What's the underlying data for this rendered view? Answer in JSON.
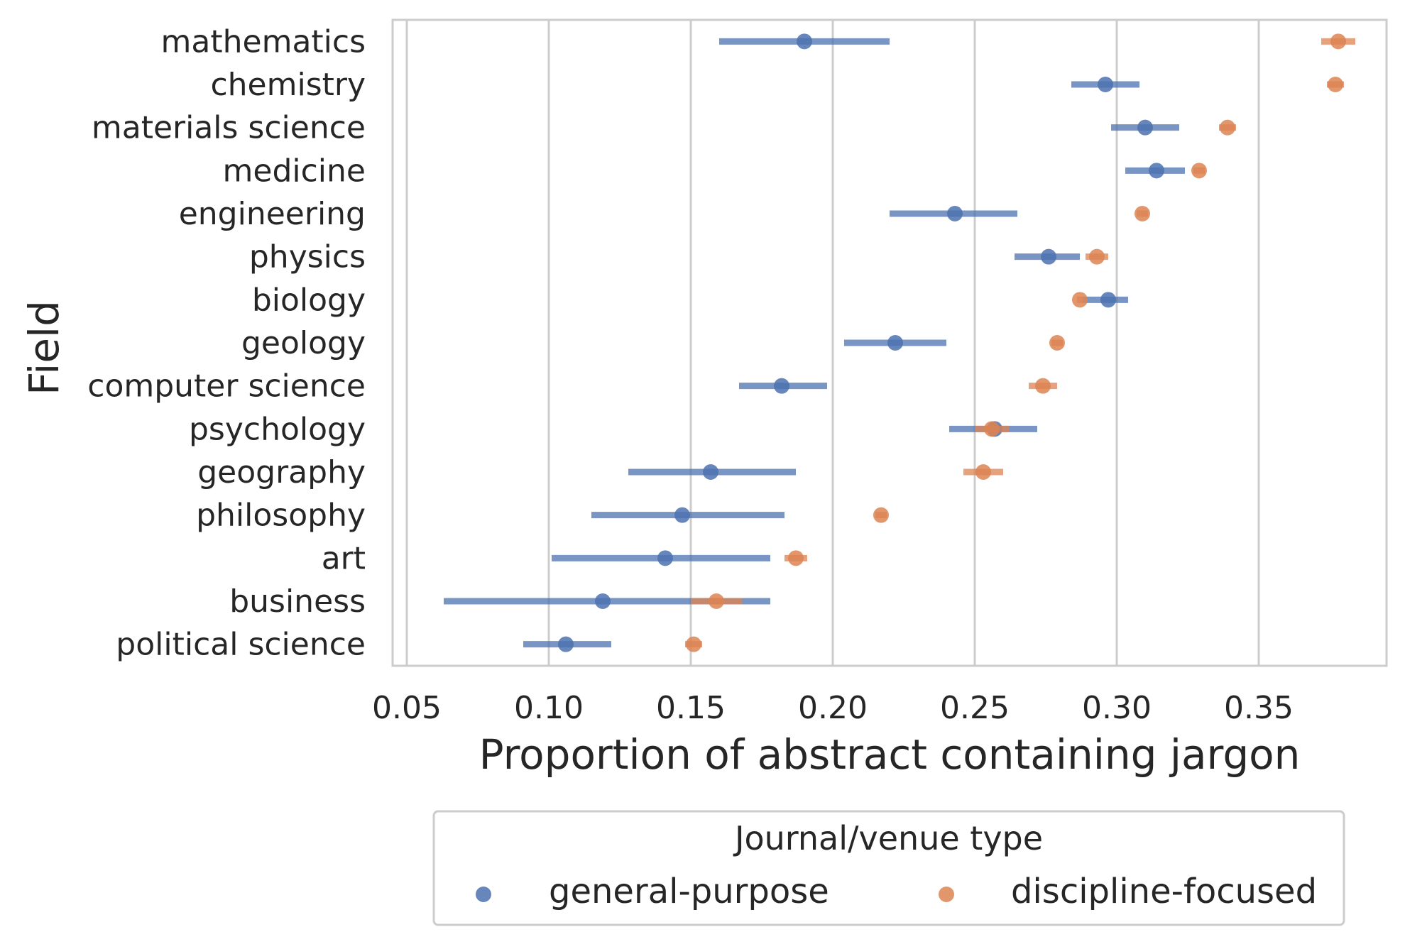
{
  "chart_data": {
    "type": "scatter",
    "orientation": "horizontal-pointplot-with-errorbars",
    "xlabel": "Proportion of abstract containing jargon",
    "ylabel": "Field",
    "xlim": [
      0.045,
      0.395
    ],
    "xticks": [
      "0.05",
      "0.10",
      "0.15",
      "0.20",
      "0.25",
      "0.30",
      "0.35"
    ],
    "grid": "vertical",
    "legend": {
      "title": "Journal/venue type",
      "placement": "below",
      "entries": [
        "general-purpose",
        "discipline-focused"
      ]
    },
    "categories": [
      "mathematics",
      "chemistry",
      "materials science",
      "medicine",
      "engineering",
      "physics",
      "biology",
      "geology",
      "computer science",
      "psychology",
      "geography",
      "philosophy",
      "art",
      "business",
      "political science"
    ],
    "series": [
      {
        "name": "general-purpose",
        "color": "#4c72b0",
        "values": [
          0.19,
          0.296,
          0.31,
          0.314,
          0.243,
          0.276,
          0.297,
          0.222,
          0.182,
          0.257,
          0.157,
          0.147,
          0.141,
          0.119,
          0.106
        ],
        "ci_low": [
          0.16,
          0.284,
          0.298,
          0.303,
          0.22,
          0.264,
          0.288,
          0.204,
          0.167,
          0.241,
          0.128,
          0.115,
          0.101,
          0.063,
          0.091
        ],
        "ci_high": [
          0.22,
          0.308,
          0.322,
          0.324,
          0.265,
          0.287,
          0.304,
          0.24,
          0.198,
          0.272,
          0.187,
          0.183,
          0.178,
          0.178,
          0.122
        ]
      },
      {
        "name": "discipline-focused",
        "color": "#dd8452",
        "values": [
          0.378,
          0.377,
          0.339,
          0.329,
          0.309,
          0.293,
          0.287,
          0.279,
          0.274,
          0.256,
          0.253,
          0.217,
          0.187,
          0.159,
          0.151
        ],
        "ci_low": [
          0.372,
          0.374,
          0.336,
          0.327,
          0.307,
          0.289,
          0.286,
          0.277,
          0.269,
          0.25,
          0.246,
          0.215,
          0.183,
          0.15,
          0.148
        ],
        "ci_high": [
          0.384,
          0.38,
          0.342,
          0.331,
          0.311,
          0.297,
          0.288,
          0.281,
          0.279,
          0.262,
          0.26,
          0.219,
          0.191,
          0.168,
          0.154
        ]
      }
    ]
  }
}
